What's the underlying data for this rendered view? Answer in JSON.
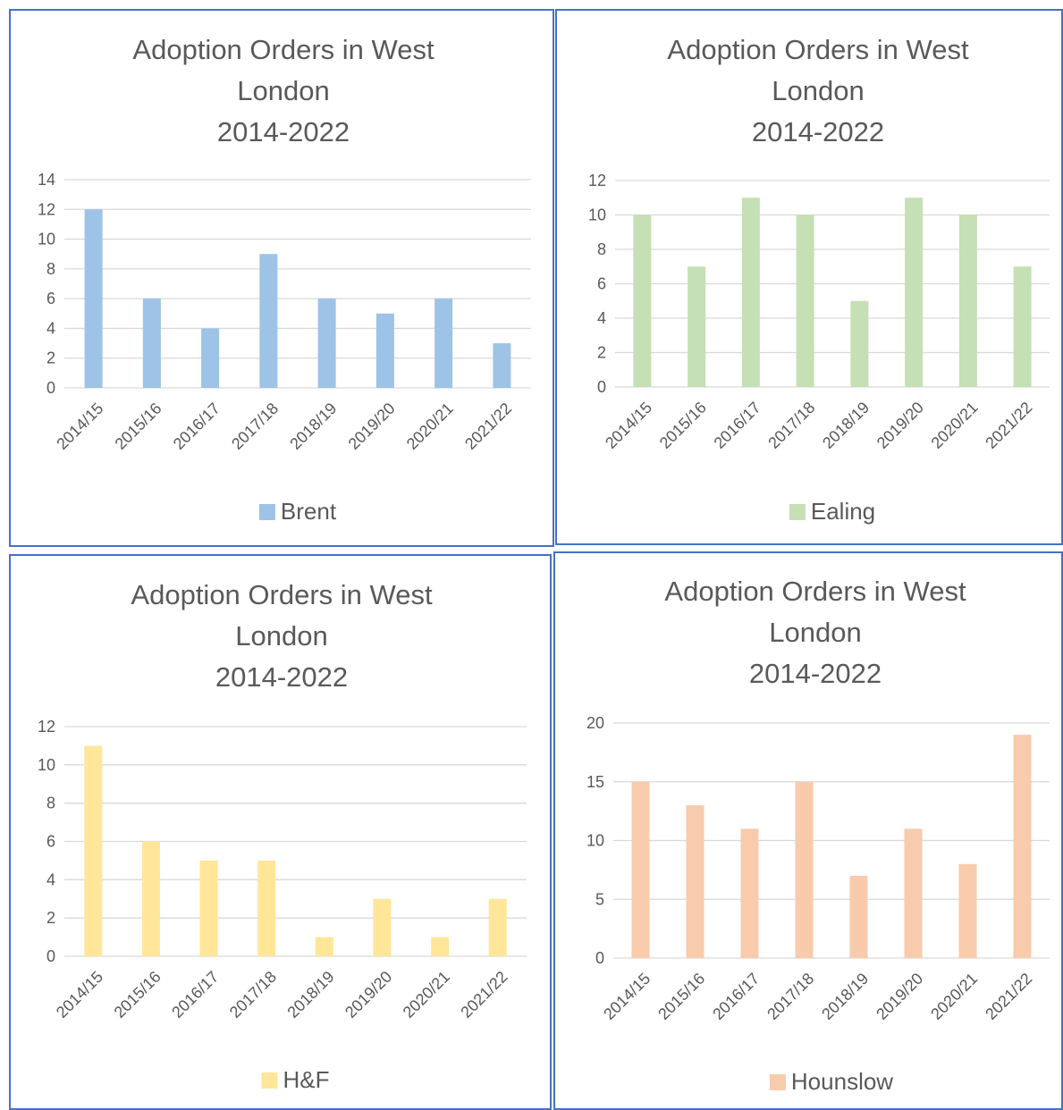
{
  "chart_data": [
    {
      "type": "bar",
      "title": "Adoption Orders in West London\n2014-2022",
      "categories": [
        "2014/15",
        "2015/16",
        "2016/17",
        "2017/18",
        "2018/19",
        "2019/20",
        "2020/21",
        "2021/22"
      ],
      "series": [
        {
          "name": "Brent",
          "color": "#9dc3e6",
          "values": [
            12,
            6,
            4,
            9,
            6,
            5,
            6,
            3
          ]
        }
      ],
      "ylim": [
        0,
        14
      ],
      "yticks": [
        0,
        2,
        4,
        6,
        8,
        10,
        12,
        14
      ],
      "grid": true,
      "legend": "bottom"
    },
    {
      "type": "bar",
      "title": "Adoption Orders in West London\n2014-2022",
      "categories": [
        "2014/15",
        "2015/16",
        "2016/17",
        "2017/18",
        "2018/19",
        "2019/20",
        "2020/21",
        "2021/22"
      ],
      "series": [
        {
          "name": "Ealing",
          "color": "#c5e0b4",
          "values": [
            10,
            7,
            11,
            10,
            5,
            11,
            10,
            7
          ]
        }
      ],
      "ylim": [
        0,
        12
      ],
      "yticks": [
        0,
        2,
        4,
        6,
        8,
        10,
        12
      ],
      "grid": true,
      "legend": "bottom"
    },
    {
      "type": "bar",
      "title": "Adoption Orders in West London\n2014-2022",
      "categories": [
        "2014/15",
        "2015/16",
        "2016/17",
        "2017/18",
        "2018/19",
        "2019/20",
        "2020/21",
        "2021/22"
      ],
      "series": [
        {
          "name": "H&F",
          "color": "#ffe699",
          "values": [
            11,
            6,
            5,
            5,
            1,
            3,
            1,
            3
          ]
        }
      ],
      "ylim": [
        0,
        12
      ],
      "yticks": [
        0,
        2,
        4,
        6,
        8,
        10,
        12
      ],
      "grid": true,
      "legend": "bottom"
    },
    {
      "type": "bar",
      "title": "Adoption Orders in West London\n2014-2022",
      "categories": [
        "2014/15",
        "2015/16",
        "2016/17",
        "2017/18",
        "2018/19",
        "2019/20",
        "2020/21",
        "2021/22"
      ],
      "series": [
        {
          "name": "Hounslow",
          "color": "#f8cbad",
          "values": [
            15,
            13,
            11,
            15,
            7,
            11,
            8,
            19
          ]
        }
      ],
      "ylim": [
        0,
        20
      ],
      "yticks": [
        0,
        5,
        10,
        15,
        20
      ],
      "grid": true,
      "legend": "bottom"
    }
  ]
}
